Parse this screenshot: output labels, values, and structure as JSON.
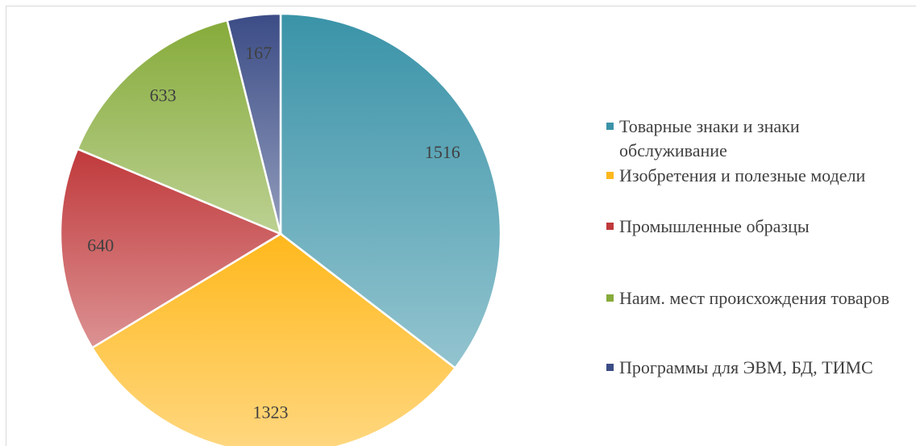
{
  "chart_data": {
    "type": "pie",
    "categories": [
      "Товарные знаки и знаки обслуживание",
      "Изобретения и полезные модели",
      "Промышленные образцы",
      "Наим. мест происхождения товаров",
      "Программы для ЭВМ, БД, ТИМС"
    ],
    "values": [
      1516,
      1323,
      640,
      633,
      167
    ],
    "colors": [
      "#3a93a8",
      "#ffb81c",
      "#c0393b",
      "#86ab3a",
      "#3b4c86"
    ],
    "legend": "right"
  }
}
